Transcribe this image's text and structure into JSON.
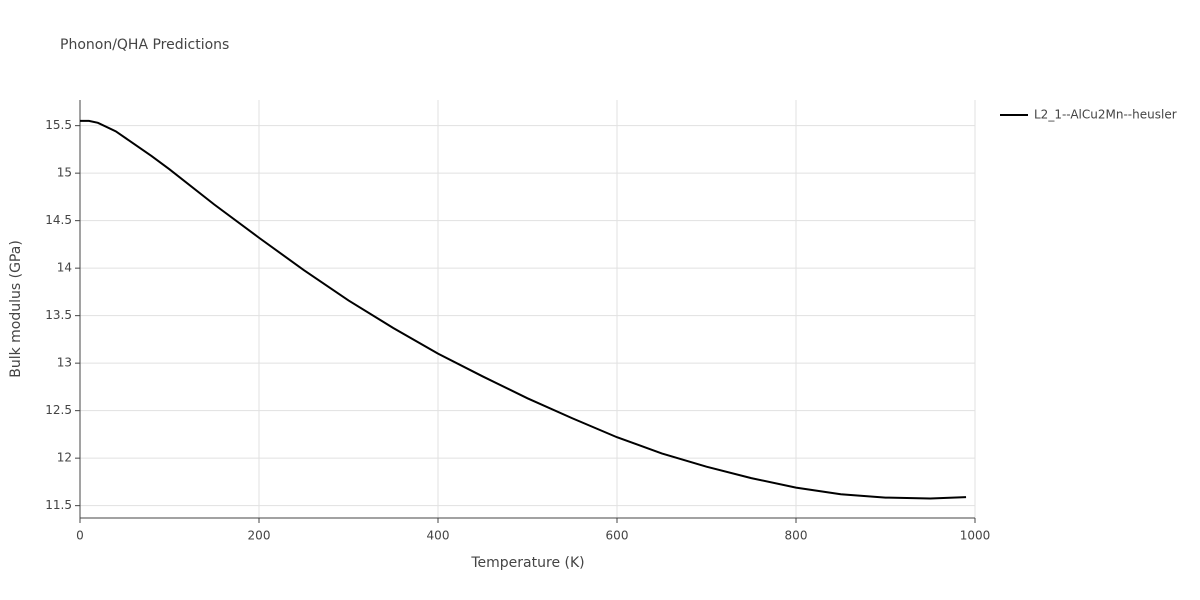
{
  "chart_data": {
    "type": "line",
    "title": "Phonon/QHA Predictions",
    "x_label": "Temperature (K)",
    "y_label": "Bulk modulus (GPa)",
    "x": [
      0,
      10,
      20,
      40,
      60,
      80,
      100,
      150,
      200,
      250,
      300,
      350,
      400,
      450,
      500,
      550,
      600,
      650,
      700,
      750,
      800,
      850,
      900,
      950,
      990
    ],
    "series": [
      {
        "name": "L2_1--AlCu2Mn--heusler",
        "color": "#000000",
        "values": [
          15.55,
          15.55,
          15.53,
          15.44,
          15.31,
          15.18,
          15.04,
          14.67,
          14.32,
          13.98,
          13.66,
          13.37,
          13.1,
          12.86,
          12.63,
          12.42,
          12.22,
          12.05,
          11.91,
          11.79,
          11.69,
          11.62,
          11.585,
          11.575,
          11.59
        ]
      }
    ],
    "xlim": [
      0,
      1000
    ],
    "xticks": [
      0,
      200,
      400,
      600,
      800,
      1000
    ],
    "ylim": [
      11.37,
      15.77
    ],
    "yticks": [
      11.5,
      12,
      12.5,
      13,
      13.5,
      14,
      14.5,
      15,
      15.5
    ],
    "grid": true,
    "legend": "right"
  }
}
